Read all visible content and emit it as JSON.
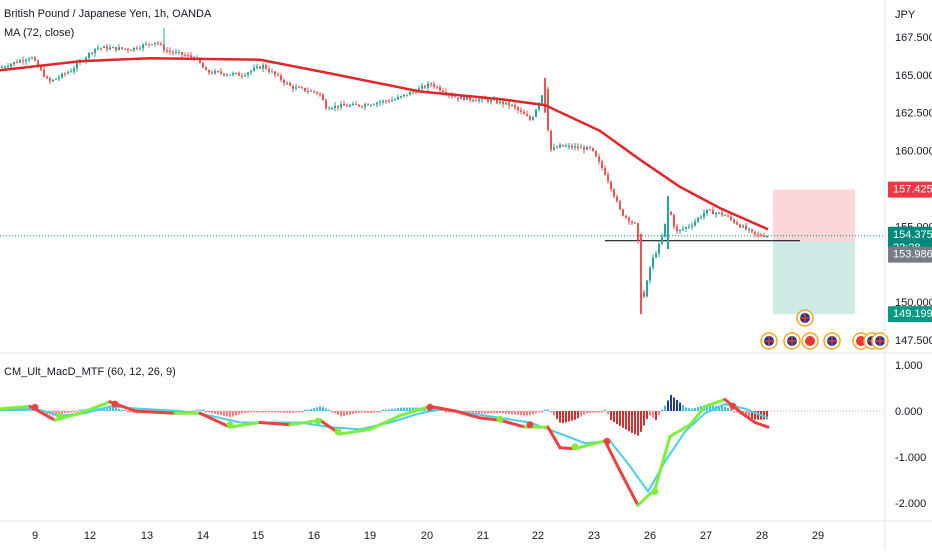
{
  "header": {
    "title": "British Pound / Japanese Yen, 1h, OANDA",
    "indicator": "MA (72, close)",
    "currency": "JPY"
  },
  "macd_panel": {
    "title": "CM_Ult_MacD_MTF (60, 12, 26, 9)"
  },
  "colors": {
    "up": "#26a69a",
    "down": "#ef5350",
    "ma": "#e0262a",
    "price_label": "#00897b",
    "stop_label": "#f23645",
    "entry_label": "#787b86",
    "target_label": "#089981",
    "macd_up": "#7cf03c",
    "macd_down": "#ef4040",
    "signal": "#4ad0e0"
  },
  "chart_data": [
    {
      "type": "line",
      "subtype": "candlestick",
      "x_tick_labels": [
        "9",
        "12",
        "13",
        "14",
        "15",
        "16",
        "19",
        "20",
        "21",
        "22",
        "23",
        "26",
        "27",
        "28",
        "29"
      ],
      "y_tick_labels": [
        "167.500",
        "165.000",
        "162.500",
        "160.000",
        "155.000",
        "150.000",
        "147.500"
      ],
      "ylim": [
        147.0,
        169.0
      ],
      "price_path": [
        [
          0,
          165.5
        ],
        [
          30,
          166.2
        ],
        [
          48,
          164.5
        ],
        [
          70,
          165.3
        ],
        [
          95,
          166.8
        ],
        [
          130,
          166.7
        ],
        [
          155,
          167.2
        ],
        [
          165,
          166.6
        ],
        [
          195,
          166.1
        ],
        [
          205,
          165.2
        ],
        [
          240,
          165.0
        ],
        [
          262,
          165.6
        ],
        [
          290,
          164.2
        ],
        [
          318,
          163.8
        ],
        [
          325,
          162.9
        ],
        [
          360,
          163.0
        ],
        [
          395,
          163.4
        ],
        [
          430,
          164.4
        ],
        [
          455,
          163.5
        ],
        [
          490,
          163.3
        ],
        [
          510,
          163.0
        ],
        [
          530,
          162.0
        ],
        [
          545,
          164.3
        ],
        [
          548,
          160.0
        ],
        [
          560,
          160.3
        ],
        [
          590,
          160.1
        ],
        [
          605,
          158.4
        ],
        [
          620,
          155.9
        ],
        [
          636,
          155.0
        ],
        [
          641,
          149.7
        ],
        [
          650,
          152.6
        ],
        [
          660,
          154.0
        ],
        [
          668,
          156.2
        ],
        [
          675,
          154.6
        ],
        [
          690,
          155.1
        ],
        [
          705,
          156.0
        ],
        [
          722,
          155.8
        ],
        [
          740,
          155.0
        ],
        [
          755,
          154.4
        ],
        [
          768,
          154.4
        ]
      ],
      "ma_series": {
        "name": "MA (72, close)",
        "points": [
          [
            0,
            165.3
          ],
          [
            80,
            165.9
          ],
          [
            150,
            166.1
          ],
          [
            260,
            166.0
          ],
          [
            330,
            165.1
          ],
          [
            420,
            163.9
          ],
          [
            500,
            163.4
          ],
          [
            545,
            163.0
          ],
          [
            600,
            161.3
          ],
          [
            640,
            159.4
          ],
          [
            680,
            157.6
          ],
          [
            720,
            156.2
          ],
          [
            768,
            154.8
          ]
        ]
      },
      "support_line": 154.05,
      "current_price": 154.375,
      "countdown": "22:28",
      "position": {
        "stop": "157.425",
        "entry": "153.986",
        "target": "149.199",
        "stop_value": 157.425,
        "entry_value": 153.986,
        "target_value": 149.199
      }
    },
    {
      "type": "bar",
      "subtype": "macd",
      "title": "CM_Ult_MacD_MTF (60, 12, 26, 9)",
      "y_tick_labels": [
        "1.000",
        "0.000",
        "-1.000",
        "-2.000"
      ],
      "ylim": [
        -2.3,
        1.2
      ],
      "macd_line": [
        [
          0,
          0.05
        ],
        [
          30,
          0.1
        ],
        [
          55,
          -0.2
        ],
        [
          80,
          -0.05
        ],
        [
          110,
          0.2
        ],
        [
          135,
          0.0
        ],
        [
          175,
          -0.05
        ],
        [
          200,
          -0.05
        ],
        [
          230,
          -0.35
        ],
        [
          260,
          -0.25
        ],
        [
          290,
          -0.3
        ],
        [
          320,
          -0.2
        ],
        [
          340,
          -0.5
        ],
        [
          370,
          -0.4
        ],
        [
          400,
          -0.1
        ],
        [
          430,
          0.1
        ],
        [
          455,
          0.0
        ],
        [
          480,
          -0.15
        ],
        [
          500,
          -0.2
        ],
        [
          525,
          -0.35
        ],
        [
          548,
          -0.35
        ],
        [
          560,
          -0.8
        ],
        [
          575,
          -0.82
        ],
        [
          605,
          -0.65
        ],
        [
          620,
          -1.3
        ],
        [
          638,
          -2.05
        ],
        [
          655,
          -1.7
        ],
        [
          670,
          -0.55
        ],
        [
          690,
          -0.3
        ],
        [
          705,
          0.1
        ],
        [
          725,
          0.25
        ],
        [
          742,
          -0.05
        ],
        [
          755,
          -0.25
        ],
        [
          768,
          -0.35
        ]
      ],
      "signal_line": [
        [
          0,
          0.02
        ],
        [
          35,
          0.05
        ],
        [
          60,
          -0.1
        ],
        [
          85,
          -0.05
        ],
        [
          110,
          0.1
        ],
        [
          140,
          0.05
        ],
        [
          180,
          0.0
        ],
        [
          210,
          -0.1
        ],
        [
          240,
          -0.25
        ],
        [
          270,
          -0.25
        ],
        [
          300,
          -0.25
        ],
        [
          330,
          -0.35
        ],
        [
          360,
          -0.4
        ],
        [
          390,
          -0.25
        ],
        [
          420,
          -0.05
        ],
        [
          445,
          0.05
        ],
        [
          470,
          -0.05
        ],
        [
          500,
          -0.15
        ],
        [
          530,
          -0.25
        ],
        [
          555,
          -0.45
        ],
        [
          585,
          -0.7
        ],
        [
          610,
          -0.65
        ],
        [
          630,
          -1.2
        ],
        [
          648,
          -1.75
        ],
        [
          665,
          -1.1
        ],
        [
          685,
          -0.45
        ],
        [
          705,
          -0.05
        ],
        [
          725,
          0.15
        ],
        [
          745,
          0.05
        ],
        [
          768,
          -0.15
        ]
      ]
    }
  ]
}
